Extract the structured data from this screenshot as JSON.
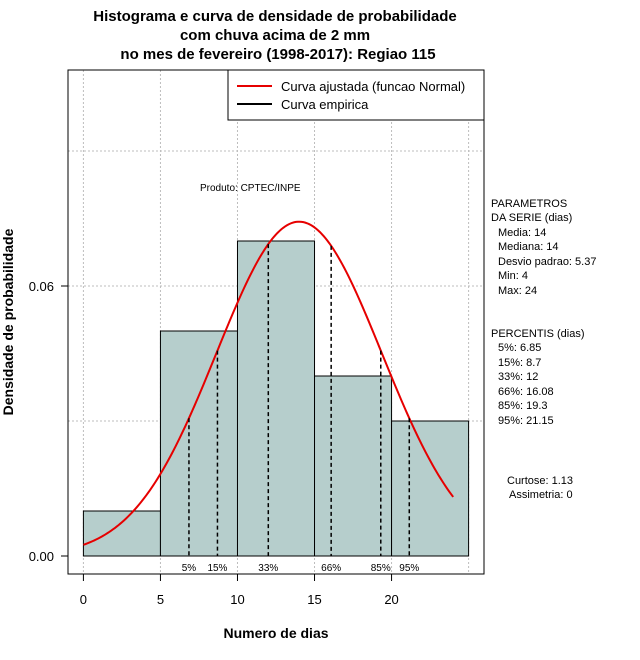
{
  "chart_data": {
    "type": "histogram",
    "title_lines": [
      "Histograma e curva de densidade de probabilidade",
      "com chuva acima de 2 mm",
      "no mes de fevereiro (1998-2017): Regiao 115"
    ],
    "xlabel": "Numero de dias",
    "ylabel": "Densidade de probabilidade",
    "xlim": [
      -1,
      26
    ],
    "ylim": [
      -0.004,
      0.108
    ],
    "x_ticks": [
      0,
      5,
      10,
      15,
      20
    ],
    "y_ticks": [
      0.0,
      0.06
    ],
    "y_tick_labels": [
      "0.00",
      "0.06"
    ],
    "grid_x": [
      0,
      5,
      10,
      15,
      20,
      25
    ],
    "grid_y": [
      0.03,
      0.06,
      0.09
    ],
    "bins": [
      {
        "start": 0,
        "end": 5,
        "density": 0.01
      },
      {
        "start": 5,
        "end": 10,
        "density": 0.05
      },
      {
        "start": 10,
        "end": 15,
        "density": 0.07
      },
      {
        "start": 15,
        "end": 20,
        "density": 0.04
      },
      {
        "start": 20,
        "end": 25,
        "density": 0.03
      }
    ],
    "fit_curve": {
      "name": "Curva ajustada (funcao Normal)",
      "mean": 14,
      "sd": 5.37,
      "x_range": [
        0,
        24
      ],
      "color": "#e60000"
    },
    "empirical_curve": {
      "name": "Curva empirica",
      "color": "#000000"
    },
    "percentile_markers": [
      {
        "label": "5%",
        "value": 6.85
      },
      {
        "label": "15%",
        "value": 8.7
      },
      {
        "label": "33%",
        "value": 12
      },
      {
        "label": "66%",
        "value": 16.08
      },
      {
        "label": "85%",
        "value": 19.3
      },
      {
        "label": "95%",
        "value": 21.15
      }
    ],
    "bar_color": "#b6cecc",
    "legend_position": "top-right"
  },
  "annotation": "Produto: CPTEC/INPE",
  "parametros": {
    "heading": [
      "PARAMETROS",
      "DA SERIE (dias)"
    ],
    "lines": [
      "Media: 14",
      "Mediana: 14",
      "Desvio padrao: 5.37",
      "Min: 4",
      "Max: 24"
    ]
  },
  "percentis": {
    "heading": "PERCENTIS (dias)",
    "lines": [
      "5%: 6.85",
      "15%: 8.7",
      "33%: 12",
      "66%: 16.08",
      "85%: 19.3",
      "95%: 21.15"
    ]
  },
  "stats": {
    "curtose": "Curtose: 1.13",
    "assimetria": "Assimetria: 0"
  }
}
